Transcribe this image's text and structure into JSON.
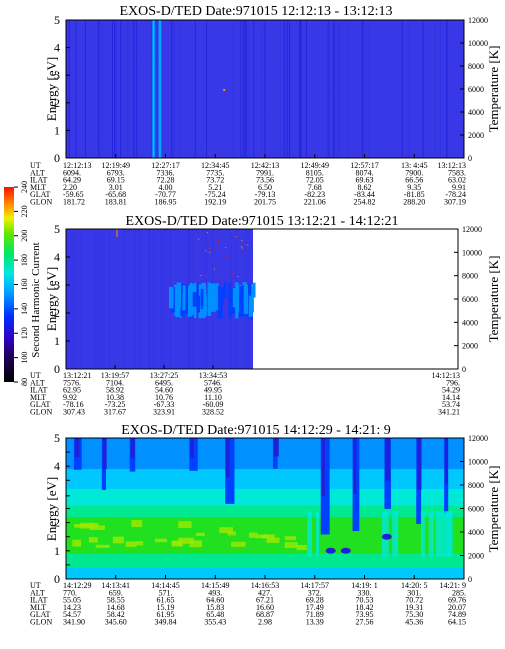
{
  "chart_data": [
    {
      "type": "heatmap",
      "title": "EXOS-D/TED   Date:971015   12:12:13 - 13:12:13",
      "ylabel": "Energy [eV]",
      "y2label": "Temperature [K]",
      "ylim": [
        0,
        5
      ],
      "yticks": [
        "0",
        "1",
        "2",
        "3",
        "4",
        "5"
      ],
      "y2lim": [
        0,
        12000
      ],
      "y2ticks": [
        "0",
        "2000",
        "4000",
        "6000",
        "8000",
        "10000",
        "12000"
      ],
      "rows": [
        {
          "label": "UT",
          "values": [
            "12:12:13",
            "12:19:49",
            "12:27:17",
            "12:34:45",
            "12:42:13",
            "12:49:49",
            "12:57:17",
            "13: 4:45",
            "13:12:13"
          ]
        },
        {
          "label": "ALT",
          "values": [
            "6094.",
            "6793.",
            "7336.",
            "7735.",
            "7991.",
            "8105.",
            "8074.",
            "7900.",
            "7583."
          ]
        },
        {
          "label": "ILAT",
          "values": [
            "64.29",
            "69.15",
            "72.28",
            "73.72",
            "73.56",
            "72.05",
            "69.63",
            "66.56",
            "63.02"
          ]
        },
        {
          "label": "MLT",
          "values": [
            "2.20",
            "3.01",
            "4.00",
            "5.21",
            "6.50",
            "7.68",
            "8.62",
            "9.35",
            "9.91"
          ]
        },
        {
          "label": "GLAT",
          "values": [
            "-59.65",
            "-65.68",
            "-70.77",
            "-75.24",
            "-79.13",
            "-82.23",
            "-83.44",
            "-81.85",
            "-78.24"
          ]
        },
        {
          "label": "GLON",
          "values": [
            "181.72",
            "183.81",
            "186.95",
            "192.19",
            "201.75",
            "221.06",
            "254.82",
            "288.20",
            "307.19"
          ]
        }
      ],
      "data_extent": 1.0,
      "spikes": [
        0.22,
        0.236
      ],
      "background": "#3838e6"
    },
    {
      "type": "heatmap",
      "title": "EXOS-D/TED   Date:971015   13:12:21 - 14:12:21",
      "ylabel": "Energy [eV]",
      "y2label": "Temperature [K]",
      "ylim": [
        0,
        5
      ],
      "yticks": [
        "0",
        "1",
        "2",
        "3",
        "4",
        "5"
      ],
      "y2lim": [
        0,
        12000
      ],
      "y2ticks": [
        "0",
        "2000",
        "4000",
        "6000",
        "8000",
        "10000",
        "12000"
      ],
      "rows": [
        {
          "label": "UT",
          "values": [
            "13:12:21",
            "13:19:57",
            "13:27:25",
            "13:34:53",
            "",
            "",
            "",
            "",
            "14:12:13"
          ]
        },
        {
          "label": "ALT",
          "values": [
            "7576.",
            "7104.",
            "6495.",
            "5746.",
            "",
            "",
            "",
            "",
            "796."
          ]
        },
        {
          "label": "ILAT",
          "values": [
            "62.95",
            "58.92",
            "54.60",
            "49.95",
            "",
            "",
            "",
            "",
            "54.29"
          ]
        },
        {
          "label": "MLT",
          "values": [
            "9.92",
            "10.38",
            "10.76",
            "11.10",
            "",
            "",
            "",
            "",
            "14.14"
          ]
        },
        {
          "label": "GLAT",
          "values": [
            "-78.16",
            "-73.25",
            "-67.33",
            "-60.09",
            "",
            "",
            "",
            "",
            "53.74"
          ]
        },
        {
          "label": "GLON",
          "values": [
            "307.43",
            "317.67",
            "323.91",
            "328.52",
            "",
            "",
            "",
            "",
            "341.21"
          ]
        }
      ],
      "data_extent": 0.477,
      "band_energy": [
        1.8,
        3.1
      ],
      "background": "#3838e6"
    },
    {
      "type": "heatmap",
      "title": "EXOS-D/TED   Date:971015   14:12:29 - 14:21: 9",
      "ylabel": "Energy [eV]",
      "y2label": "Temperature [K]",
      "ylim": [
        0,
        5
      ],
      "yticks": [
        "0",
        "0.5",
        "1",
        "1.5",
        "2",
        "2.5",
        "2.95",
        "3.5",
        "4",
        "4.5",
        "5"
      ],
      "y2lim": [
        0,
        12000
      ],
      "y2ticks": [
        "0",
        "2000",
        "4000",
        "6000",
        "8000",
        "10000",
        "12000"
      ],
      "rows": [
        {
          "label": "UT",
          "values": [
            "14:12:29",
            "14:13:41",
            "14:14:45",
            "14:15:49",
            "14:16:53",
            "14:17:57",
            "14:19: 1",
            "14:20: 5",
            "14:21: 9"
          ]
        },
        {
          "label": "ALT",
          "values": [
            "770.",
            "659.",
            "571.",
            "493.",
            "427.",
            "372.",
            "330.",
            "301.",
            "285."
          ]
        },
        {
          "label": "ILAT",
          "values": [
            "55.05",
            "58.55",
            "61.65",
            "64.60",
            "67.21",
            "69.28",
            "70.53",
            "70.72",
            "69.76"
          ]
        },
        {
          "label": "MLT",
          "values": [
            "14.23",
            "14.68",
            "15.19",
            "15.83",
            "16.60",
            "17.49",
            "18.42",
            "19.31",
            "20.07"
          ]
        },
        {
          "label": "GLAT",
          "values": [
            "54.57",
            "58.42",
            "61.95",
            "65.48",
            "68.87",
            "71.89",
            "73.95",
            "75.30",
            "74.89"
          ]
        },
        {
          "label": "GLON",
          "values": [
            "341.90",
            "345.60",
            "349.84",
            "355.43",
            "2.98",
            "13.39",
            "27.56",
            "45.36",
            "64.15"
          ]
        }
      ],
      "data_extent": 1.0
    }
  ],
  "colorbar": {
    "label": "Second Harmonic Current",
    "ticks": [
      "80",
      "100",
      "120",
      "140",
      "160",
      "180",
      "200",
      "220",
      "240"
    ],
    "range": [
      80,
      240
    ]
  },
  "colors": {
    "deep_blue": "#2020d8",
    "mid_blue": "#3030e8",
    "royal_blue": "#0040ff",
    "sky_blue": "#0090ff",
    "light_blue": "#00c8ff",
    "cyan": "#00e8d8",
    "green_cyan": "#00e890",
    "green": "#20e020",
    "yellow_green": "#a0e800",
    "yellow": "#f0f000",
    "orange": "#ff9000",
    "red": "#ff2000"
  }
}
